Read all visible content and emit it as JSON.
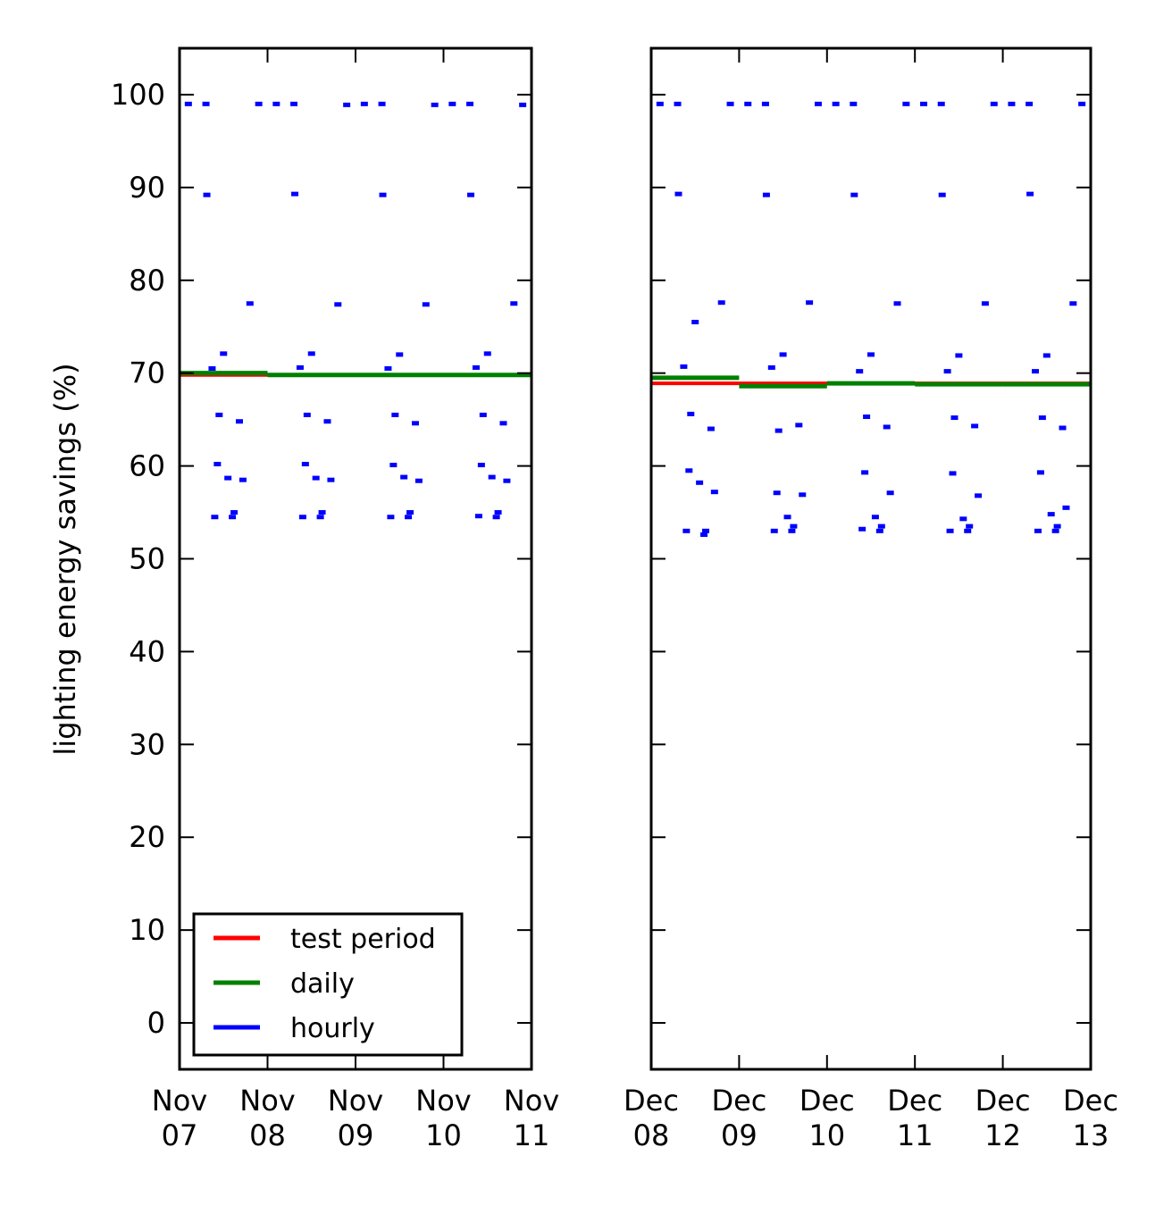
{
  "chart_data": [
    {
      "type": "line",
      "title": "",
      "ylabel": "lighting energy savings (%)",
      "xlabel": "",
      "xlim": [
        "2024-11-07",
        "2024-11-11"
      ],
      "ylim": [
        -5,
        105
      ],
      "yticks": [
        0,
        10,
        20,
        30,
        40,
        50,
        60,
        70,
        80,
        90,
        100
      ],
      "xticks": [
        {
          "value": "2024-11-07",
          "line1": "Nov",
          "line2": "07"
        },
        {
          "value": "2024-11-08",
          "line1": "Nov",
          "line2": "08"
        },
        {
          "value": "2024-11-09",
          "line1": "Nov",
          "line2": "09"
        },
        {
          "value": "2024-11-10",
          "line1": "Nov",
          "line2": "10"
        },
        {
          "value": "2024-11-11",
          "line1": "Nov",
          "line2": "11"
        }
      ],
      "grid": false,
      "legend_position": "lower-left",
      "series": [
        {
          "name": "test period",
          "color": "#ff0000",
          "kind": "step",
          "steps": [
            {
              "start": "2024-11-07",
              "end": "2024-11-11",
              "value": 69.8
            }
          ]
        },
        {
          "name": "daily",
          "color": "#008000",
          "kind": "step",
          "steps": [
            {
              "start": "2024-11-07",
              "end": "2024-11-08",
              "value": 70.0
            },
            {
              "start": "2024-11-08",
              "end": "2024-11-09",
              "value": 69.8
            },
            {
              "start": "2024-11-09",
              "end": "2024-11-10",
              "value": 69.8
            },
            {
              "start": "2024-11-10",
              "end": "2024-11-11",
              "value": 69.8
            }
          ]
        },
        {
          "name": "hourly",
          "color": "#0000ff",
          "kind": "hourly",
          "points": [
            {
              "day": "2024-11-07",
              "values": [
                99,
                99,
                89.2,
                70.5,
                54.5,
                65.5,
                60.2,
                72.1,
                58.7,
                54.5,
                55.0,
                64.8,
                58.5,
                77.5,
                99
              ]
            },
            {
              "day": "2024-11-08",
              "values": [
                99,
                99,
                89.3,
                70.6,
                54.5,
                65.5,
                60.2,
                72.1,
                58.7,
                54.5,
                55.0,
                64.8,
                58.5,
                77.4,
                98.9
              ]
            },
            {
              "day": "2024-11-09",
              "values": [
                99,
                99,
                89.2,
                70.5,
                54.5,
                65.5,
                60.1,
                72.0,
                58.8,
                54.5,
                55.0,
                64.6,
                58.4,
                77.4,
                98.9
              ]
            },
            {
              "day": "2024-11-10",
              "values": [
                99,
                99,
                89.2,
                70.6,
                54.6,
                65.5,
                60.1,
                72.1,
                58.8,
                54.5,
                55.0,
                64.6,
                58.4,
                77.5,
                98.9
              ]
            }
          ]
        }
      ]
    },
    {
      "type": "line",
      "title": "",
      "ylabel": "",
      "xlabel": "",
      "xlim": [
        "2024-12-08",
        "2024-12-13"
      ],
      "ylim": [
        -5,
        105
      ],
      "yticks": [
        0,
        10,
        20,
        30,
        40,
        50,
        60,
        70,
        80,
        90,
        100
      ],
      "xticks": [
        {
          "value": "2024-12-08",
          "line1": "Dec",
          "line2": "08"
        },
        {
          "value": "2024-12-09",
          "line1": "Dec",
          "line2": "09"
        },
        {
          "value": "2024-12-10",
          "line1": "Dec",
          "line2": "10"
        },
        {
          "value": "2024-12-11",
          "line1": "Dec",
          "line2": "11"
        },
        {
          "value": "2024-12-12",
          "line1": "Dec",
          "line2": "12"
        },
        {
          "value": "2024-12-13",
          "line1": "Dec",
          "line2": "13"
        }
      ],
      "grid": false,
      "series": [
        {
          "name": "test period",
          "color": "#ff0000",
          "kind": "step",
          "steps": [
            {
              "start": "2024-12-08",
              "end": "2024-12-13",
              "value": 68.9
            }
          ]
        },
        {
          "name": "daily",
          "color": "#008000",
          "kind": "step",
          "steps": [
            {
              "start": "2024-12-08",
              "end": "2024-12-09",
              "value": 69.5
            },
            {
              "start": "2024-12-09",
              "end": "2024-12-10",
              "value": 68.6
            },
            {
              "start": "2024-12-10",
              "end": "2024-12-11",
              "value": 68.9
            },
            {
              "start": "2024-12-11",
              "end": "2024-12-12",
              "value": 68.8
            },
            {
              "start": "2024-12-12",
              "end": "2024-12-13",
              "value": 68.8
            }
          ]
        },
        {
          "name": "hourly",
          "color": "#0000ff",
          "kind": "hourly",
          "points": [
            {
              "day": "2024-12-08",
              "values": [
                99,
                99,
                89.3,
                70.7,
                53.0,
                65.6,
                59.5,
                75.5,
                58.2,
                52.6,
                53.0,
                64.0,
                57.2,
                77.6,
                99
              ]
            },
            {
              "day": "2024-12-09",
              "values": [
                99,
                99,
                89.2,
                70.6,
                53.0,
                63.8,
                57.1,
                72.0,
                54.5,
                53.0,
                53.5,
                64.4,
                56.9,
                77.6,
                99
              ]
            },
            {
              "day": "2024-12-10",
              "values": [
                99,
                99,
                89.2,
                70.2,
                53.2,
                65.3,
                59.3,
                72.0,
                54.5,
                53.0,
                53.5,
                64.2,
                57.1,
                77.5,
                99
              ]
            },
            {
              "day": "2024-12-11",
              "values": [
                99,
                99,
                89.2,
                70.2,
                53.0,
                65.2,
                59.2,
                71.9,
                54.3,
                53.0,
                53.5,
                64.3,
                56.8,
                77.5,
                99
              ]
            },
            {
              "day": "2024-12-12",
              "values": [
                99,
                99,
                89.3,
                70.2,
                53.0,
                65.2,
                59.3,
                71.9,
                54.8,
                53.0,
                53.5,
                64.1,
                55.5,
                77.5,
                99
              ]
            }
          ]
        }
      ]
    }
  ]
}
